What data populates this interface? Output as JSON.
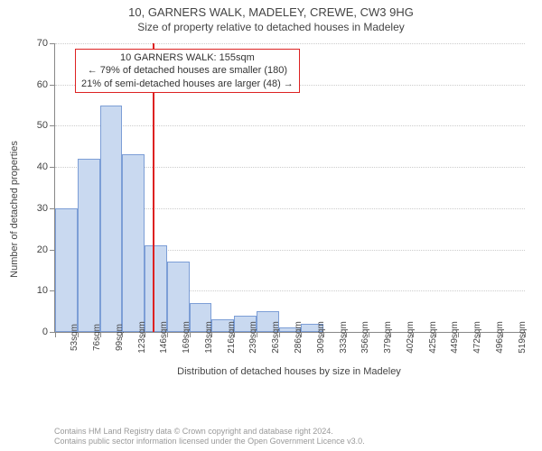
{
  "title_main": "10, GARNERS WALK, MADELEY, CREWE, CW3 9HG",
  "title_sub": "Size of property relative to detached houses in Madeley",
  "yaxis_label": "Number of detached properties",
  "xaxis_label": "Distribution of detached houses by size in Madeley",
  "ylim": [
    0,
    70
  ],
  "ytick_step": 10,
  "annotation": {
    "line1": "10 GARNERS WALK: 155sqm",
    "line2": "← 79% of detached houses are smaller (180)",
    "line3": "21% of semi-detached houses are larger (48) →"
  },
  "reference_x_sqm": 155,
  "chart": {
    "type": "histogram",
    "x_start_sqm": 53,
    "x_step_sqm": 23.3,
    "bar_color": "#c9d9f0",
    "bar_border_color": "#7c9ed6",
    "grid_color": "#cccccc",
    "axis_color": "#888888",
    "refline_color": "#d22",
    "background_color": "#ffffff",
    "categories": [
      "53sqm",
      "76sqm",
      "99sqm",
      "123sqm",
      "146sqm",
      "169sqm",
      "193sqm",
      "216sqm",
      "239sqm",
      "263sqm",
      "286sqm",
      "309sqm",
      "333sqm",
      "356sqm",
      "379sqm",
      "402sqm",
      "425sqm",
      "449sqm",
      "472sqm",
      "496sqm",
      "519sqm"
    ],
    "values": [
      30,
      42,
      55,
      43,
      21,
      17,
      7,
      3,
      4,
      5,
      1,
      2,
      0,
      0,
      0,
      0,
      0,
      0,
      0,
      0,
      0
    ]
  },
  "footer": {
    "line1": "Contains HM Land Registry data © Crown copyright and database right 2024.",
    "line2": "Contains public sector information licensed under the Open Government Licence v3.0."
  }
}
